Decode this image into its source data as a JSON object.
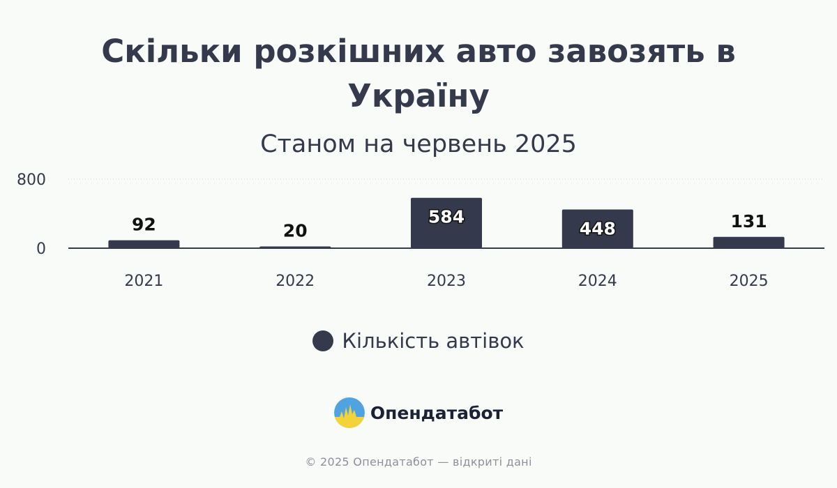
{
  "colors": {
    "series": "#343a4c",
    "text": "#343a4c",
    "grid": "#c8ccd2",
    "background": "#f9fbf9"
  },
  "chart_data": {
    "type": "bar",
    "title": "Скільки розкішних авто завозять в Україну",
    "subtitle": "Станом на червень 2025",
    "categories": [
      "2021",
      "2022",
      "2023",
      "2024",
      "2025"
    ],
    "series": [
      {
        "name": "Кількість автівок",
        "values": [
          92,
          20,
          584,
          448,
          131
        ]
      }
    ],
    "ylim": [
      0,
      800
    ],
    "yticks": [
      "0",
      "800"
    ],
    "grid": true,
    "legend_position": "bottom"
  },
  "brand": {
    "name": "Опендатабот",
    "logo_icon": "opendatabot-logo-icon"
  },
  "footer": {
    "text": "© 2025 Опендатабот — відкриті дані"
  }
}
